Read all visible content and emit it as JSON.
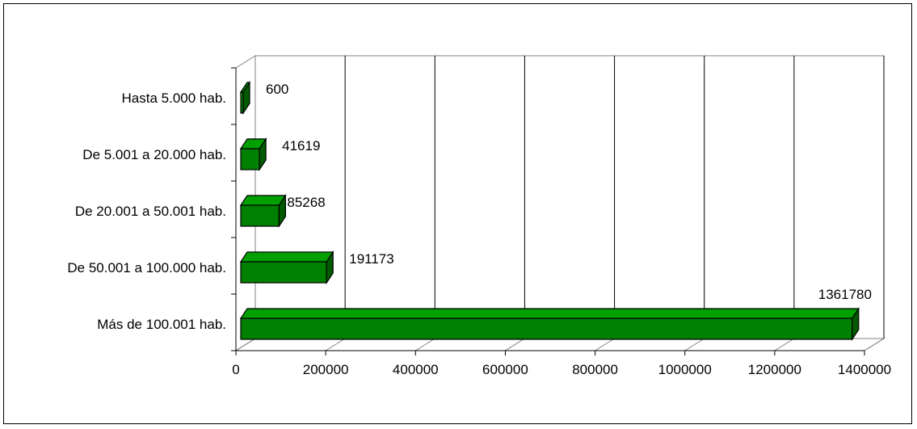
{
  "chart_data": {
    "type": "bar",
    "orientation": "horizontal",
    "style": "3d",
    "categories": [
      "Hasta 5.000 hab.",
      "De 5.001 a 20.000 hab.",
      "De 20.001 a 50.001 hab.",
      "De 50.001 a 100.000 hab.",
      "Más de 100.001 hab."
    ],
    "values": [
      600,
      41619,
      85268,
      191173,
      1361780
    ],
    "data_labels": [
      "600",
      "41619",
      "85268",
      "191173",
      "1361780"
    ],
    "xlim": [
      0,
      1400000
    ],
    "x_ticks": [
      0,
      200000,
      400000,
      600000,
      800000,
      1000000,
      1200000,
      1400000
    ],
    "x_tick_labels": [
      "0",
      "200000",
      "400000",
      "600000",
      "800000",
      "1000000",
      "1200000",
      "1400000"
    ],
    "grid": "vertical",
    "legend": "none",
    "title": "",
    "xlabel": "",
    "ylabel": "",
    "colors": {
      "bar_front": "#008000",
      "bar_top": "#00a000",
      "bar_side": "#005a00",
      "edge": "#000000",
      "grid": "#000000",
      "wall": "#ffffff"
    }
  }
}
